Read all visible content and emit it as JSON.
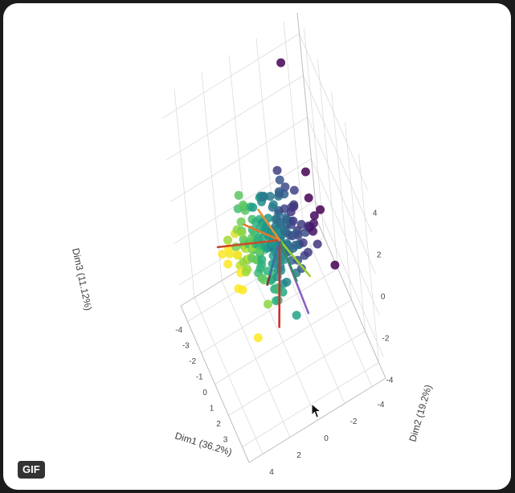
{
  "chart_data": {
    "type": "scatter",
    "projection": "3d",
    "title": "",
    "axes": {
      "x": {
        "label": "Dim1 (36.2%)",
        "ticks": [
          "4",
          "2",
          "0",
          "-2",
          "-4"
        ]
      },
      "y": {
        "label": "Dim2 (19.2%)",
        "ticks": [
          "-4",
          "-3",
          "-2",
          "-1",
          "0",
          "1",
          "2",
          "3"
        ]
      },
      "z": {
        "label": "Dim3 (11.12%)",
        "ticks": [
          "4",
          "2",
          "0",
          "-2",
          "-4"
        ]
      }
    },
    "colorscale": "viridis",
    "grid": true,
    "loading_vectors": [
      {
        "color": "#cf2f2f",
        "end": [
          0.5,
          0.9,
          -3.4
        ]
      },
      {
        "color": "#8a63c0",
        "end": [
          -1.2,
          2.0,
          -2.6
        ]
      },
      {
        "color": "#9acd32",
        "end": [
          -1.4,
          2.4,
          -0.6
        ]
      },
      {
        "color": "#2f8f5a",
        "end": [
          -0.6,
          2.0,
          -0.8
        ]
      },
      {
        "color": "#e07a2c",
        "end": [
          1.6,
          -0.9,
          0.6
        ]
      },
      {
        "color": "#7a3b3b",
        "end": [
          1.2,
          1.3,
          -0.8
        ]
      },
      {
        "color": "#3b6fb3",
        "end": [
          0.9,
          1.2,
          -0.5
        ]
      },
      {
        "color": "#c94c2c",
        "end": [
          3.6,
          -0.8,
          0.4
        ]
      },
      {
        "color": "#e69138",
        "end": [
          0.4,
          -1.2,
          0.6
        ]
      }
    ],
    "point_count": 200
  },
  "badge": {
    "label": "GIF"
  }
}
